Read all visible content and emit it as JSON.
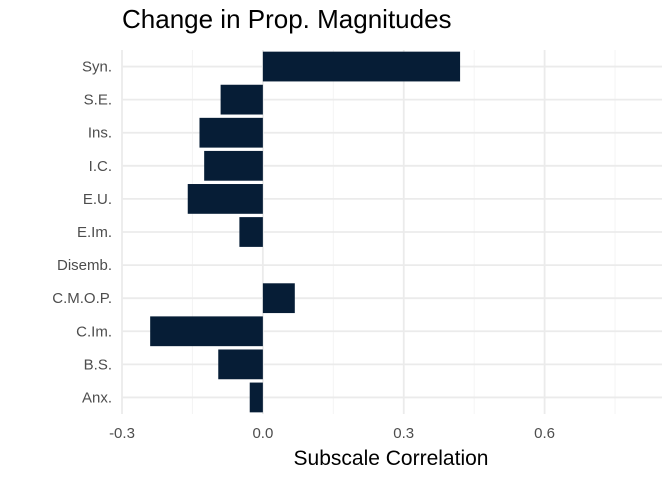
{
  "chart_data": {
    "type": "bar",
    "orientation": "horizontal",
    "title": "Change in Prop. Magnitudes",
    "xlabel": "Subscale Correlation",
    "ylabel": "",
    "categories": [
      "Syn.",
      "S.E.",
      "Ins.",
      "I.C.",
      "E.U.",
      "E.Im.",
      "Disemb.",
      "C.M.O.P.",
      "C.Im.",
      "B.S.",
      "Anx."
    ],
    "values": [
      0.42,
      -0.09,
      -0.135,
      -0.125,
      -0.16,
      -0.05,
      0.0,
      0.068,
      -0.24,
      -0.095,
      -0.028
    ],
    "xlim": [
      -0.3,
      0.85
    ],
    "xticks": [
      -0.3,
      0.0,
      0.3,
      0.6
    ],
    "xtick_labels": [
      "-0.3",
      "0.0",
      "0.3",
      "0.6"
    ],
    "grid": true,
    "colors": {
      "bar": "#061D36",
      "grid_major": "#EBEBEB",
      "grid_minor": "#F4F4F4"
    }
  }
}
